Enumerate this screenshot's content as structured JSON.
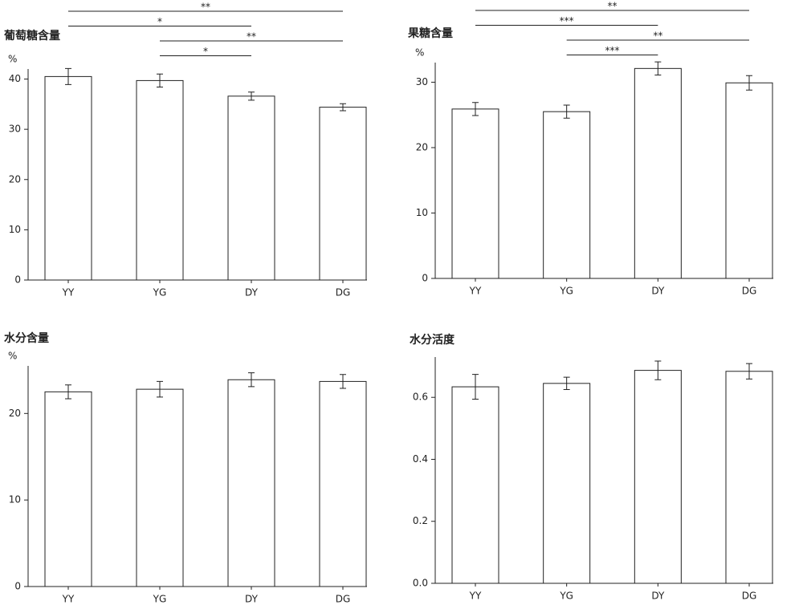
{
  "chart_data": [
    {
      "type": "bar",
      "title": "葡萄糖含量",
      "y_label": "%",
      "categories": [
        "YY",
        "YG",
        "DY",
        "DG"
      ],
      "values": [
        40.5,
        39.7,
        36.6,
        34.4
      ],
      "errors": [
        1.6,
        1.3,
        0.8,
        0.7
      ],
      "color": "#ffffff",
      "ylim": [
        0,
        42
      ],
      "yticks": [
        0,
        10,
        20,
        30,
        40
      ],
      "annotations": [
        {
          "label": "**",
          "from": "YY",
          "to": "DG"
        },
        {
          "label": "*",
          "from": "YY",
          "to": "DY"
        },
        {
          "label": "**",
          "from": "YG",
          "to": "DG"
        },
        {
          "label": "*",
          "from": "YG",
          "to": "DY"
        }
      ]
    },
    {
      "type": "bar",
      "title": "果糖含量",
      "y_label": "%",
      "categories": [
        "YY",
        "YG",
        "DY",
        "DG"
      ],
      "values": [
        25.9,
        25.5,
        32.1,
        29.9
      ],
      "errors": [
        1.0,
        1.0,
        1.0,
        1.1
      ],
      "color": "#ffffff",
      "ylim": [
        0,
        33
      ],
      "yticks": [
        0,
        10,
        20,
        30
      ],
      "annotations": [
        {
          "label": "**",
          "from": "YY",
          "to": "DG"
        },
        {
          "label": "***",
          "from": "YY",
          "to": "DY"
        },
        {
          "label": "**",
          "from": "YG",
          "to": "DG"
        },
        {
          "label": "***",
          "from": "YG",
          "to": "DY"
        }
      ]
    },
    {
      "type": "bar",
      "title": "水分含量",
      "y_label": "%",
      "categories": [
        "YY",
        "YG",
        "DY",
        "DG"
      ],
      "values": [
        22.5,
        22.8,
        23.9,
        23.7
      ],
      "errors": [
        0.8,
        0.9,
        0.8,
        0.8
      ],
      "color": "#ffffff",
      "ylim": [
        0,
        25.5
      ],
      "yticks": [
        0,
        10,
        20
      ]
    },
    {
      "type": "bar",
      "title": "水分活度",
      "categories": [
        "YY",
        "YG",
        "DY",
        "DG"
      ],
      "values": [
        0.634,
        0.645,
        0.687,
        0.684
      ],
      "errors": [
        0.04,
        0.02,
        0.03,
        0.025
      ],
      "color": "#ffffff",
      "ylim": [
        0,
        0.73
      ],
      "yticks": [
        {
          "value": 0,
          "label": "0.0"
        },
        {
          "value": 0.2,
          "label": "0.2"
        },
        {
          "value": 0.4,
          "label": "0.4"
        },
        {
          "value": 0.6,
          "label": "0.6"
        }
      ]
    }
  ]
}
